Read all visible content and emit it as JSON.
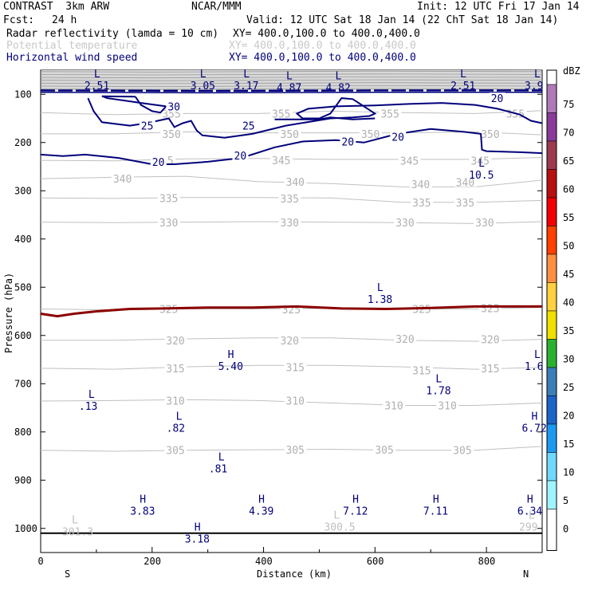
{
  "header": {
    "model": "CONTRAST  3km ARW",
    "org": "NCAR/MMM",
    "init": "Init: 12 UTC Fri 17 Jan 14",
    "fcst_label": "Fcst:",
    "fcst_value": "24 h",
    "valid": "Valid: 12 UTC Sat 18 Jan 14 (22 ChT Sat 18 Jan 14)"
  },
  "legend_rows": [
    {
      "name": "Radar reflectivity (lamda = 10 cm)",
      "xy": "XY= 400.0,100.0 to 400.0,400.0",
      "color": "#000000"
    },
    {
      "name": "Potential temperature",
      "xy": "XY= 400.0,100.0 to 400.0,400.0",
      "color": "#c8c8c8"
    },
    {
      "name": "Horizontal wind speed",
      "xy": "XY= 400.0,100.0 to 400.0,400.0",
      "color": "#00007a"
    }
  ],
  "chart_data": {
    "type": "cross-section",
    "xlabel": "Distance (km)",
    "ylabel": "Pressure (hPa)",
    "xlim": [
      0,
      900
    ],
    "ylim": [
      1050,
      50
    ],
    "x_ticks": [
      0,
      200,
      400,
      600,
      800
    ],
    "y_ticks": [
      100,
      200,
      300,
      400,
      500,
      600,
      700,
      800,
      900,
      1000
    ],
    "x_end_labels": {
      "left": "S",
      "right": "N"
    },
    "colorbar": {
      "unit": "dBZ",
      "levels": [
        75,
        70,
        65,
        60,
        55,
        50,
        45,
        40,
        35,
        30,
        25,
        20,
        15,
        10,
        5,
        0
      ],
      "colors": [
        "#b07ab8",
        "#8a3a9a",
        "#9c3b4e",
        "#b80f0f",
        "#f00000",
        "#ff4000",
        "#ff9040",
        "#ffd040",
        "#f0e000",
        "#2cb030",
        "#3a7fb8",
        "#1c64c8",
        "#1c9af0",
        "#70d8ff",
        "#a0f4ff",
        "#ffffff"
      ]
    },
    "theta_isentropes": [
      {
        "value": 355,
        "p": [
          138,
          142,
          140,
          140,
          135,
          138,
          140,
          134
        ]
      },
      {
        "value": 350,
        "p": [
          182,
          182,
          178,
          180,
          180,
          180,
          178,
          184
        ]
      },
      {
        "value": 345,
        "p": [
          237,
          238,
          234,
          233,
          235,
          235,
          235,
          231
        ]
      },
      {
        "value": 340,
        "p": [
          275,
          272,
          270,
          281,
          285,
          292,
          292,
          278
        ]
      },
      {
        "value": 335,
        "p": [
          315,
          316,
          314,
          314,
          315,
          324,
          324,
          320
        ]
      },
      {
        "value": 330,
        "p": [
          365,
          366,
          365,
          364,
          365,
          366,
          368,
          364
        ]
      },
      {
        "value": 325,
        "p": [
          545,
          547,
          545,
          545,
          544,
          545,
          545,
          542
        ]
      },
      {
        "value": 320,
        "p": [
          610,
          610,
          607,
          605,
          605,
          610,
          612,
          608
        ]
      },
      {
        "value": 315,
        "p": [
          668,
          670,
          665,
          662,
          662,
          665,
          670,
          666
        ]
      },
      {
        "value": 310,
        "p": [
          736,
          735,
          733,
          735,
          740,
          745,
          745,
          740
        ]
      },
      {
        "value": 305,
        "p": [
          838,
          840,
          838,
          837,
          836,
          838,
          838,
          830
        ]
      }
    ],
    "theta_labels": [
      {
        "x": 218,
        "p": 140,
        "text": "355"
      },
      {
        "x": 415,
        "p": 140,
        "text": "355"
      },
      {
        "x": 610,
        "p": 140,
        "text": "355"
      },
      {
        "x": 835,
        "p": 140,
        "text": "355"
      },
      {
        "x": 218,
        "p": 182,
        "text": "350"
      },
      {
        "x": 430,
        "p": 182,
        "text": "350"
      },
      {
        "x": 575,
        "p": 182,
        "text": "350"
      },
      {
        "x": 790,
        "p": 182,
        "text": "350"
      },
      {
        "x": 205,
        "p": 237,
        "text": "345"
      },
      {
        "x": 415,
        "p": 237,
        "text": "345"
      },
      {
        "x": 645,
        "p": 238,
        "text": "345"
      },
      {
        "x": 772,
        "p": 238,
        "text": "345"
      },
      {
        "x": 130,
        "p": 275,
        "text": "340"
      },
      {
        "x": 440,
        "p": 281,
        "text": "340"
      },
      {
        "x": 665,
        "p": 286,
        "text": "340"
      },
      {
        "x": 745,
        "p": 282,
        "text": "340"
      },
      {
        "x": 213,
        "p": 315,
        "text": "335"
      },
      {
        "x": 430,
        "p": 316,
        "text": "335"
      },
      {
        "x": 667,
        "p": 324,
        "text": "335"
      },
      {
        "x": 745,
        "p": 324,
        "text": "335"
      },
      {
        "x": 213,
        "p": 366,
        "text": "330"
      },
      {
        "x": 430,
        "p": 366,
        "text": "330"
      },
      {
        "x": 637,
        "p": 366,
        "text": "330"
      },
      {
        "x": 780,
        "p": 366,
        "text": "330"
      },
      {
        "x": 213,
        "p": 545,
        "text": "325"
      },
      {
        "x": 433,
        "p": 546,
        "text": "325"
      },
      {
        "x": 667,
        "p": 545,
        "text": "325"
      },
      {
        "x": 790,
        "p": 543,
        "text": "325"
      },
      {
        "x": 225,
        "p": 610,
        "text": "320"
      },
      {
        "x": 430,
        "p": 610,
        "text": "320"
      },
      {
        "x": 637,
        "p": 607,
        "text": "320"
      },
      {
        "x": 790,
        "p": 608,
        "text": "320"
      },
      {
        "x": 225,
        "p": 668,
        "text": "315"
      },
      {
        "x": 440,
        "p": 666,
        "text": "315"
      },
      {
        "x": 667,
        "p": 672,
        "text": "315"
      },
      {
        "x": 790,
        "p": 668,
        "text": "315"
      },
      {
        "x": 225,
        "p": 735,
        "text": "310"
      },
      {
        "x": 440,
        "p": 735,
        "text": "310"
      },
      {
        "x": 617,
        "p": 745,
        "text": "310"
      },
      {
        "x": 713,
        "p": 745,
        "text": "310"
      },
      {
        "x": 225,
        "p": 838,
        "text": "305"
      },
      {
        "x": 440,
        "p": 837,
        "text": "305"
      },
      {
        "x": 600,
        "p": 837,
        "text": "305"
      },
      {
        "x": 740,
        "p": 838,
        "text": "305"
      }
    ],
    "wind_contours": [
      {
        "value": 30,
        "x": [
          170,
          180,
          200,
          215,
          225,
          180,
          120,
          110,
          170
        ],
        "p": [
          105,
          122,
          135,
          138,
          125,
          118,
          108,
          104,
          105
        ]
      },
      {
        "value": 25,
        "x": [
          85,
          95,
          110,
          160,
          190,
          230,
          240,
          255,
          270,
          280,
          290,
          330,
          380,
          440,
          520,
          560,
          590,
          600,
          560,
          540,
          520,
          500,
          470,
          460,
          480,
          530,
          600,
          660,
          720,
          780,
          820,
          860,
          880,
          900
        ],
        "p": [
          108,
          135,
          158,
          165,
          160,
          150,
          168,
          160,
          155,
          175,
          185,
          190,
          182,
          165,
          150,
          148,
          145,
          140,
          110,
          108,
          140,
          150,
          150,
          140,
          130,
          125,
          123,
          120,
          118,
          122,
          130,
          142,
          155,
          160
        ]
      },
      {
        "value": 20,
        "x": [
          0,
          40,
          80,
          140,
          200,
          240,
          300,
          360,
          420,
          470,
          530,
          580,
          640,
          700,
          760,
          790,
          792,
          800,
          860,
          900
        ],
        "p": [
          225,
          228,
          225,
          232,
          245,
          245,
          240,
          232,
          210,
          198,
          195,
          200,
          182,
          172,
          178,
          182,
          215,
          218,
          220,
          222
        ]
      },
      {
        "value": 20,
        "x": [
          420,
          500,
          520,
          560,
          600
        ],
        "p": [
          152,
          152,
          148,
          152,
          150
        ]
      }
    ],
    "wind_labels": [
      {
        "x": 228,
        "p": 125,
        "text": "30"
      },
      {
        "x": 180,
        "p": 165,
        "text": "25"
      },
      {
        "x": 362,
        "p": 165,
        "text": "25"
      },
      {
        "x": 200,
        "p": 240,
        "text": "20"
      },
      {
        "x": 347,
        "p": 227,
        "text": "20"
      },
      {
        "x": 540,
        "p": 198,
        "text": "20"
      },
      {
        "x": 630,
        "p": 188,
        "text": "20"
      },
      {
        "x": 808,
        "p": 108,
        "text": "20"
      }
    ],
    "hl_markers": [
      {
        "kind": "L",
        "value": "2.51",
        "x": 90,
        "p": 68,
        "color": "#00007a"
      },
      {
        "kind": "L",
        "value": "3.05",
        "x": 280,
        "p": 68,
        "color": "#00007a"
      },
      {
        "kind": "L",
        "value": "3.17",
        "x": 358,
        "p": 68,
        "color": "#00007a"
      },
      {
        "kind": "L",
        "value": "4.87",
        "x": 435,
        "p": 72,
        "color": "#00007a"
      },
      {
        "kind": "L",
        "value": "4.82",
        "x": 523,
        "p": 72,
        "color": "#00007a"
      },
      {
        "kind": "L",
        "value": "2.51",
        "x": 747,
        "p": 68,
        "color": "#00007a"
      },
      {
        "kind": "L",
        "value": "3.9",
        "x": 880,
        "p": 68,
        "color": "#00007a"
      },
      {
        "kind": "L",
        "value": "10.5",
        "x": 780,
        "p": 253,
        "color": "#00007a"
      },
      {
        "kind": "L",
        "value": "1.38",
        "x": 598,
        "p": 511,
        "color": "#00007a"
      },
      {
        "kind": "H",
        "value": "5.40",
        "x": 330,
        "p": 650,
        "color": "#00007a"
      },
      {
        "kind": "L",
        "value": "1.6",
        "x": 880,
        "p": 650,
        "color": "#00007a"
      },
      {
        "kind": "L",
        "value": "1.78",
        "x": 703,
        "p": 700,
        "color": "#00007a"
      },
      {
        "kind": "L",
        "value": ".13",
        "x": 80,
        "p": 733,
        "color": "#00007a"
      },
      {
        "kind": "L",
        "value": ".82",
        "x": 237,
        "p": 778,
        "color": "#00007a"
      },
      {
        "kind": "H",
        "value": "6.72",
        "x": 875,
        "p": 778,
        "color": "#00007a"
      },
      {
        "kind": "L",
        "value": ".81",
        "x": 313,
        "p": 862,
        "color": "#00007a"
      },
      {
        "kind": "H",
        "value": "3.83",
        "x": 172,
        "p": 950,
        "color": "#00007a"
      },
      {
        "kind": "H",
        "value": "4.39",
        "x": 385,
        "p": 950,
        "color": "#00007a"
      },
      {
        "kind": "H",
        "value": "7.12",
        "x": 554,
        "p": 950,
        "color": "#00007a"
      },
      {
        "kind": "H",
        "value": "7.11",
        "x": 698,
        "p": 950,
        "color": "#00007a"
      },
      {
        "kind": "H",
        "value": "6.34",
        "x": 867,
        "p": 950,
        "color": "#00007a"
      },
      {
        "kind": "H",
        "value": "3.18",
        "x": 270,
        "p": 1008,
        "color": "#00007a"
      },
      {
        "kind": "L",
        "value": "301.3",
        "x": 50,
        "p": 993,
        "color": "#c0c0c0"
      },
      {
        "kind": "L",
        "value": "300.5",
        "x": 520,
        "p": 983,
        "color": "#c0c0c0"
      },
      {
        "kind": "L",
        "value": "299",
        "x": 870,
        "p": 983,
        "color": "#c0c0c0"
      }
    ],
    "reflectivity_band": {
      "p_top": 50,
      "p_bottom": 92,
      "color": "#d8d8d8"
    },
    "red_contour": {
      "value": 25,
      "x": [
        0,
        30,
        60,
        100,
        160,
        220,
        300,
        380,
        460,
        540,
        620,
        700,
        780,
        860,
        900
      ],
      "p": [
        555,
        560,
        555,
        550,
        545,
        544,
        542,
        542,
        540,
        544,
        545,
        543,
        540,
        540,
        540
      ]
    },
    "surface_p": 1010
  }
}
